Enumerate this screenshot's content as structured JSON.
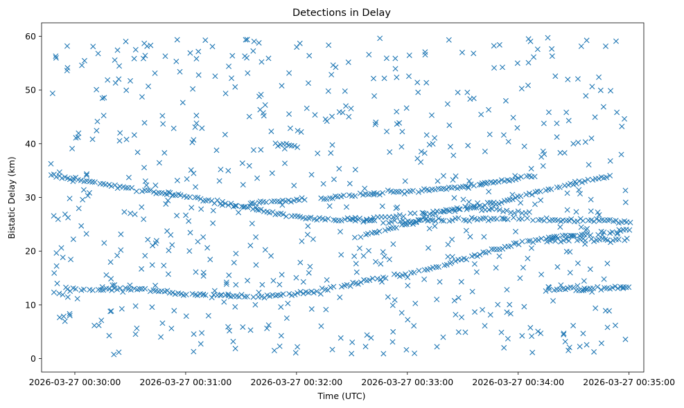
{
  "chart_data": {
    "type": "scatter",
    "title": "Detections in Delay",
    "xlabel": "Time (UTC)",
    "ylabel": "Bistatic Delay (km)",
    "marker": "x",
    "color": "#1f77b4",
    "grid": false,
    "xlim": [
      -18,
      308
    ],
    "ylim": [
      -2.5,
      62.5
    ],
    "x_unit": "seconds after 2026-03-27 00:30:00",
    "xticks": [
      {
        "value": 0,
        "label": "2026-03-27 00:30:00"
      },
      {
        "value": 60,
        "label": "2026-03-27 00:31:00"
      },
      {
        "value": 120,
        "label": "2026-03-27 00:32:00"
      },
      {
        "value": 180,
        "label": "2026-03-27 00:33:00"
      },
      {
        "value": 240,
        "label": "2026-03-27 00:34:00"
      },
      {
        "value": 300,
        "label": "2026-03-27 00:35:00"
      }
    ],
    "yticks": [
      {
        "value": 0,
        "label": "0"
      },
      {
        "value": 10,
        "label": "10"
      },
      {
        "value": 20,
        "label": "20"
      },
      {
        "value": 30,
        "label": "30"
      },
      {
        "value": 40,
        "label": "40"
      },
      {
        "value": 50,
        "label": "50"
      },
      {
        "value": 60,
        "label": "60"
      }
    ],
    "tracks": [
      {
        "name": "track-12km",
        "x_start": -13,
        "x_end": 301,
        "x_step": 1.5,
        "curve": [
          [
            -13,
            12.0
          ],
          [
            -3,
            12.8
          ],
          [
            30,
            13.0
          ],
          [
            55,
            12.2
          ],
          [
            75,
            11.7
          ],
          [
            100,
            11.5
          ],
          [
            130,
            12.5
          ],
          [
            160,
            14.5
          ],
          [
            190,
            16.5
          ],
          [
            220,
            19.5
          ],
          [
            245,
            22.0
          ]
        ],
        "gaps": [
          [
            -8,
            -3
          ]
        ]
      },
      {
        "name": "track-34km",
        "x_start": -13,
        "x_end": 301,
        "x_step": 1.5,
        "curve": [
          [
            -13,
            34.2
          ],
          [
            10,
            32.8
          ],
          [
            30,
            31.5
          ],
          [
            60,
            30.2
          ],
          [
            90,
            28.3
          ],
          [
            110,
            27.0
          ],
          [
            130,
            26.0
          ],
          [
            150,
            25.8
          ],
          [
            175,
            25.5
          ],
          [
            200,
            25.8
          ],
          [
            230,
            26.0
          ],
          [
            260,
            25.8
          ],
          [
            301,
            25.5
          ]
        ],
        "gaps": []
      },
      {
        "name": "track-40km-segment",
        "x_start": 107,
        "x_end": 121,
        "x_step": 1.5,
        "curve": [
          [
            107,
            40.0
          ],
          [
            121,
            39.5
          ]
        ],
        "gaps": []
      },
      {
        "name": "track-29km-rising",
        "x_start": 96,
        "x_end": 250,
        "x_step": 1.5,
        "curve": [
          [
            96,
            29.0
          ],
          [
            140,
            30.0
          ],
          [
            170,
            31.0
          ],
          [
            200,
            31.5
          ],
          [
            220,
            32.5
          ],
          [
            250,
            34.0
          ]
        ],
        "gaps": [
          [
            125,
            133
          ]
        ]
      },
      {
        "name": "track-24km-rising",
        "x_start": 150,
        "x_end": 290,
        "x_step": 1.5,
        "curve": [
          [
            150,
            22.5
          ],
          [
            180,
            25.0
          ],
          [
            200,
            27.5
          ],
          [
            230,
            29.0
          ],
          [
            250,
            31.0
          ],
          [
            290,
            34.0
          ]
        ],
        "gaps": []
      },
      {
        "name": "track-27km-sparse",
        "x_start": 150,
        "x_end": 245,
        "x_step": 2.0,
        "curve": [
          [
            150,
            26.0
          ],
          [
            175,
            26.5
          ],
          [
            200,
            27.5
          ],
          [
            220,
            28.0
          ],
          [
            245,
            27.0
          ]
        ],
        "gaps": []
      },
      {
        "name": "track-13km-tail",
        "x_start": 255,
        "x_end": 300,
        "x_step": 1.5,
        "curve": [
          [
            255,
            12.8
          ],
          [
            280,
            13.0
          ],
          [
            300,
            13.2
          ]
        ],
        "gaps": []
      },
      {
        "name": "track-23km-tail",
        "x_start": 255,
        "x_end": 300,
        "x_step": 1.5,
        "curve": [
          [
            255,
            22.5
          ],
          [
            280,
            23.2
          ],
          [
            300,
            24.0
          ]
        ],
        "gaps": []
      }
    ],
    "clutter": {
      "count": 620,
      "x_range": [
        -13,
        301
      ],
      "y_range": [
        0.5,
        60
      ],
      "note": "scattered background detections spread across the full delay range"
    }
  }
}
